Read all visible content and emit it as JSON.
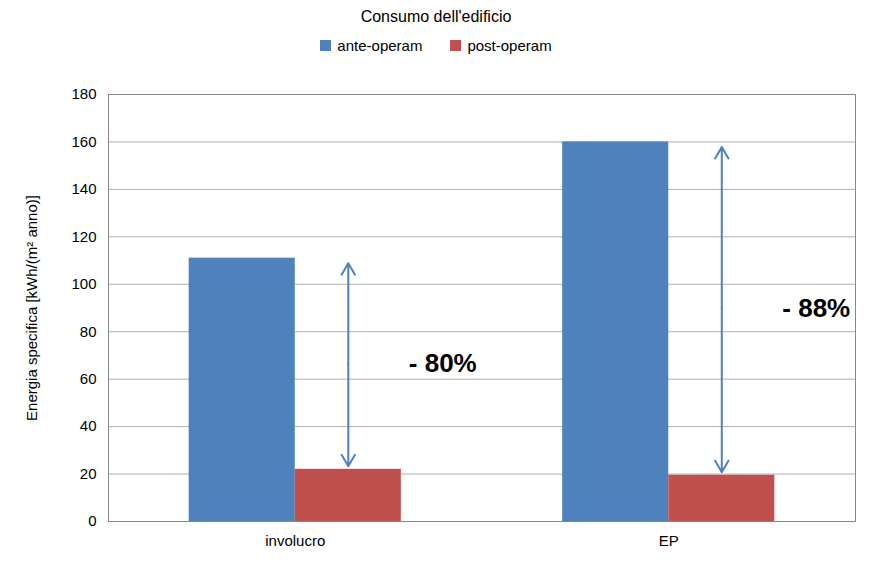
{
  "chart_data": {
    "type": "bar",
    "title": "Consumo dell'edificio",
    "y_label": "Energia specifica [kWh/(m² anno)]",
    "categories": [
      "involucro",
      "EP"
    ],
    "series": [
      {
        "name": "ante-operam",
        "color": "#4f81bd",
        "values": [
          111,
          160
        ]
      },
      {
        "name": "post-operam",
        "color": "#c0504d",
        "values": [
          22,
          19.5
        ]
      }
    ],
    "annotations": [
      {
        "category": "involucro",
        "text": "- 80%"
      },
      {
        "category": "EP",
        "text": "- 88%"
      }
    ],
    "ylim": [
      0,
      180
    ],
    "yticks": [
      0,
      20,
      40,
      60,
      80,
      100,
      120,
      140,
      160,
      180
    ],
    "grid": true,
    "legend": "top"
  }
}
